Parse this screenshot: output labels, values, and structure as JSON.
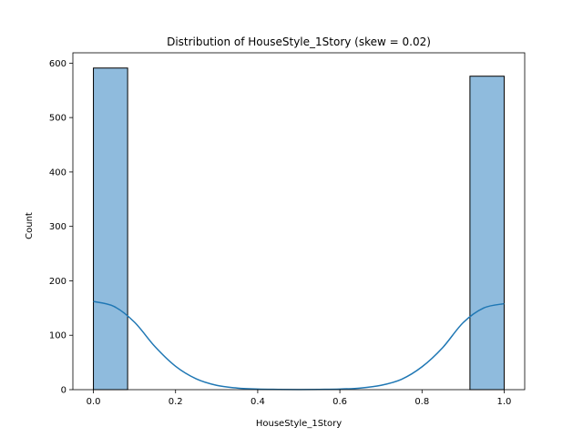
{
  "chart_data": {
    "type": "histogram",
    "title": "Distribution of HouseStyle_1Story (skew = 0.02)",
    "xlabel": "HouseStyle_1Story",
    "ylabel": "Count",
    "xlim": [
      -0.05,
      1.05
    ],
    "ylim": [
      0,
      619
    ],
    "xticks": [
      0.0,
      0.2,
      0.4,
      0.6,
      0.8,
      1.0
    ],
    "xtick_labels": [
      "0.0",
      "0.2",
      "0.4",
      "0.6",
      "0.8",
      "1.0"
    ],
    "yticks": [
      0,
      100,
      200,
      300,
      400,
      500,
      600
    ],
    "ytick_labels": [
      "0",
      "100",
      "200",
      "300",
      "400",
      "500",
      "600"
    ],
    "bins": [
      {
        "x0": 0.0,
        "x1": 0.0833,
        "count": 591
      },
      {
        "x0": 0.9167,
        "x1": 1.0,
        "count": 576
      }
    ],
    "kde": {
      "x": [
        0.0,
        0.05,
        0.1,
        0.15,
        0.2,
        0.25,
        0.3,
        0.35,
        0.4,
        0.45,
        0.5,
        0.55,
        0.6,
        0.65,
        0.7,
        0.75,
        0.8,
        0.85,
        0.9,
        0.95,
        1.0
      ],
      "y": [
        162,
        153,
        124,
        79,
        43,
        20,
        8,
        3,
        1,
        0.5,
        0.3,
        0.5,
        1,
        3,
        8,
        19,
        42,
        77,
        123,
        150,
        158
      ]
    },
    "bar_fill": "#8fbbdd",
    "bar_edge": "#000000",
    "kde_color": "#1f77b4",
    "grid": false,
    "legend": "none"
  }
}
